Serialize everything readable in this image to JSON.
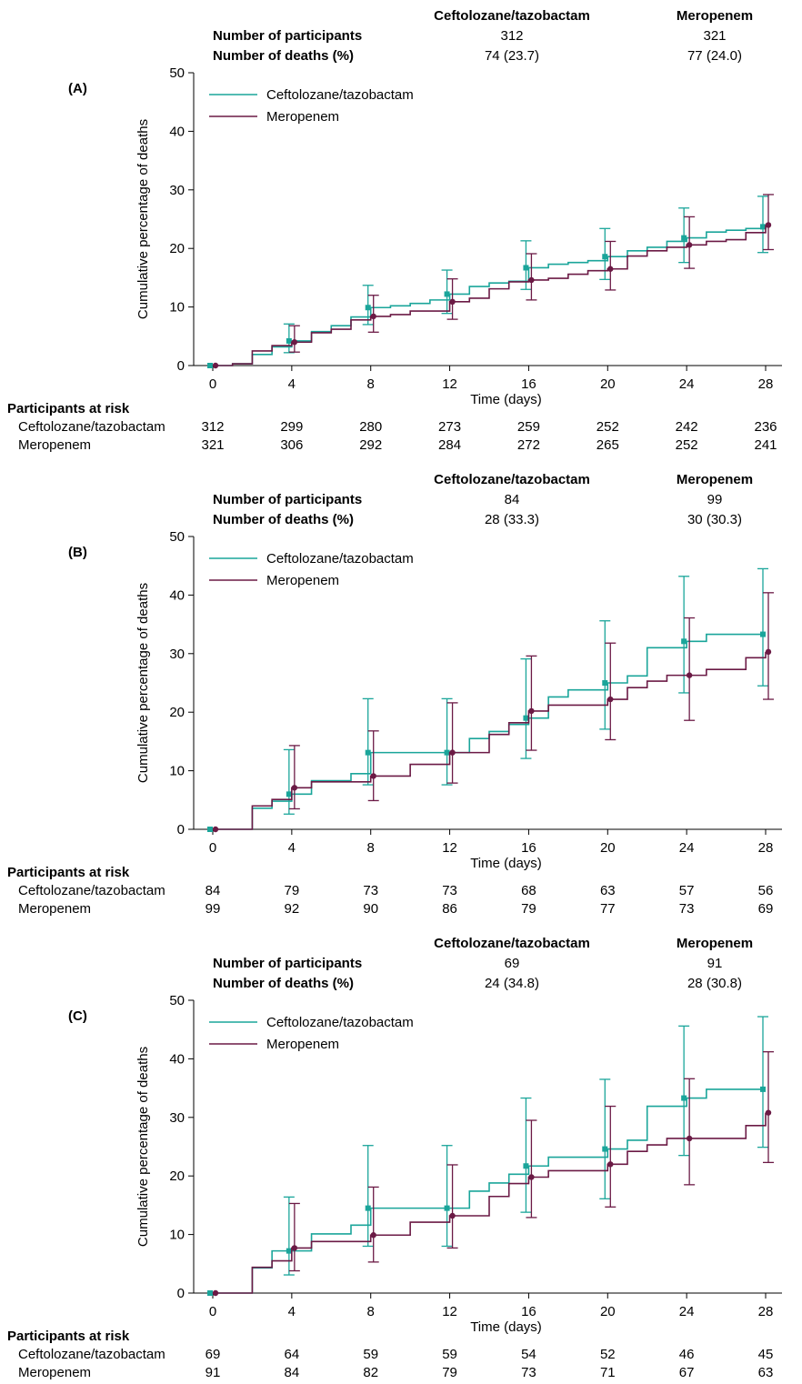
{
  "colors": {
    "ceftolozane": "#1aa59a",
    "meropenem": "#6b1a45"
  },
  "chart_data": [
    {
      "type": "line",
      "panel_label": "(A)",
      "xlabel": "Time (days)",
      "ylabel": "Cumulative percentage of deaths",
      "xlim": [
        0,
        28
      ],
      "ylim": [
        0,
        50
      ],
      "xticks": [
        0,
        4,
        8,
        12,
        16,
        20,
        24,
        28
      ],
      "yticks": [
        0,
        10,
        20,
        30,
        40,
        50
      ],
      "legend_position": "top-left",
      "summary": {
        "col_headers": [
          "Ceftolozane/tazobactam",
          "Meropenem"
        ],
        "row_labels": [
          "Number of participants",
          "Number of deaths (%)"
        ],
        "values": [
          [
            "312",
            "321"
          ],
          [
            "74 (23.7)",
            "77 (24.0)"
          ]
        ]
      },
      "series": [
        {
          "name": "Ceftolozane/tazobactam",
          "step_x": [
            0,
            1,
            2,
            3,
            4,
            5,
            6,
            7,
            8,
            9,
            10,
            11,
            12,
            13,
            14,
            15,
            16,
            17,
            18,
            19,
            20,
            21,
            22,
            23,
            24,
            25,
            26,
            27,
            28
          ],
          "step_y": [
            0,
            0.3,
            1.9,
            3.2,
            4.2,
            5.8,
            6.8,
            8.3,
            9.9,
            10.2,
            10.6,
            11.2,
            12.2,
            13.5,
            14.1,
            14.4,
            16.7,
            17.3,
            17.6,
            17.9,
            18.6,
            19.6,
            20.2,
            21.2,
            21.8,
            22.8,
            23.1,
            23.4,
            23.7
          ],
          "points_x": [
            0,
            4,
            8,
            12,
            16,
            20,
            24,
            28
          ],
          "points_y": [
            0,
            4.2,
            9.9,
            12.2,
            16.7,
            18.6,
            21.8,
            23.7
          ],
          "ci_low": [
            0,
            2.2,
            7.0,
            8.9,
            13.0,
            14.7,
            17.6,
            19.3
          ],
          "ci_high": [
            0,
            7.1,
            13.7,
            16.3,
            21.3,
            23.4,
            26.9,
            28.9
          ]
        },
        {
          "name": "Meropenem",
          "step_x": [
            0,
            1,
            2,
            3,
            4,
            5,
            6,
            7,
            8,
            9,
            10,
            11,
            12,
            13,
            14,
            15,
            16,
            17,
            18,
            19,
            20,
            21,
            22,
            23,
            24,
            25,
            26,
            27,
            28
          ],
          "step_y": [
            0,
            0.3,
            2.5,
            3.4,
            4.0,
            5.6,
            6.2,
            7.8,
            8.4,
            8.7,
            9.3,
            9.3,
            10.9,
            11.5,
            13.1,
            14.3,
            14.6,
            14.9,
            15.6,
            16.2,
            16.5,
            18.7,
            19.6,
            20.2,
            20.6,
            21.2,
            21.5,
            22.7,
            24.0
          ],
          "points_x": [
            0,
            4,
            8,
            12,
            16,
            20,
            24,
            28
          ],
          "points_y": [
            0,
            4.0,
            8.4,
            10.9,
            14.6,
            16.5,
            20.6,
            24.0
          ],
          "ci_low": [
            0,
            2.3,
            5.7,
            7.9,
            11.2,
            12.9,
            16.6,
            19.8
          ],
          "ci_high": [
            0,
            6.8,
            12.0,
            14.8,
            19.1,
            21.2,
            25.4,
            29.2
          ]
        }
      ],
      "at_risk": {
        "title": "Participants at risk",
        "rows": [
          {
            "label": "Ceftolozane/tazobactam",
            "values": [
              312,
              299,
              280,
              273,
              259,
              252,
              242,
              236
            ]
          },
          {
            "label": "Meropenem",
            "values": [
              321,
              306,
              292,
              284,
              272,
              265,
              252,
              241
            ]
          }
        ]
      }
    },
    {
      "type": "line",
      "panel_label": "(B)",
      "xlabel": "Time (days)",
      "ylabel": "Cumulative percentage of deaths",
      "xlim": [
        0,
        28
      ],
      "ylim": [
        0,
        50
      ],
      "xticks": [
        0,
        4,
        8,
        12,
        16,
        20,
        24,
        28
      ],
      "yticks": [
        0,
        10,
        20,
        30,
        40,
        50
      ],
      "legend_position": "top-left",
      "summary": {
        "col_headers": [
          "Ceftolozane/tazobactam",
          "Meropenem"
        ],
        "row_labels": [
          "Number of participants",
          "Number of deaths (%)"
        ],
        "values": [
          [
            "84",
            "99"
          ],
          [
            "28 (33.3)",
            "30 (30.3)"
          ]
        ]
      },
      "series": [
        {
          "name": "Ceftolozane/tazobactam",
          "step_x": [
            0,
            2,
            3,
            4,
            5,
            7,
            8,
            12,
            13,
            14,
            15,
            16,
            17,
            18,
            20,
            21,
            22,
            24,
            25,
            28
          ],
          "step_y": [
            0,
            3.6,
            4.8,
            6.0,
            8.3,
            9.5,
            13.1,
            13.1,
            15.5,
            16.7,
            17.9,
            19.0,
            22.6,
            23.8,
            25.0,
            26.2,
            31.0,
            32.1,
            33.3,
            33.3
          ],
          "points_x": [
            0,
            4,
            8,
            12,
            16,
            20,
            24,
            28
          ],
          "points_y": [
            0,
            6.0,
            13.1,
            13.1,
            19.0,
            25.0,
            32.1,
            33.3
          ],
          "ci_low": [
            0,
            2.6,
            7.6,
            7.6,
            12.1,
            17.1,
            23.3,
            24.5
          ],
          "ci_high": [
            0,
            13.6,
            22.3,
            22.3,
            29.1,
            35.6,
            43.2,
            44.5
          ]
        },
        {
          "name": "Meropenem",
          "step_x": [
            0,
            2,
            3,
            4,
            5,
            7,
            8,
            10,
            12,
            14,
            15,
            16,
            17,
            19,
            20,
            21,
            22,
            23,
            24,
            25,
            27,
            28
          ],
          "step_y": [
            0,
            4.0,
            5.1,
            7.1,
            8.1,
            8.1,
            9.1,
            11.1,
            13.1,
            16.2,
            18.2,
            20.2,
            21.2,
            21.2,
            22.2,
            24.2,
            25.3,
            26.3,
            26.3,
            27.3,
            29.3,
            30.3
          ],
          "points_x": [
            0,
            4,
            8,
            12,
            16,
            20,
            24,
            28
          ],
          "points_y": [
            0,
            7.1,
            9.1,
            13.1,
            20.2,
            22.2,
            26.3,
            30.3
          ],
          "ci_low": [
            0,
            3.5,
            4.9,
            7.9,
            13.5,
            15.3,
            18.6,
            22.2
          ],
          "ci_high": [
            0,
            14.3,
            16.8,
            21.6,
            29.6,
            31.8,
            36.1,
            40.4
          ]
        }
      ],
      "at_risk": {
        "title": "Participants at risk",
        "rows": [
          {
            "label": "Ceftolozane/tazobactam",
            "values": [
              84,
              79,
              73,
              73,
              68,
              63,
              57,
              56
            ]
          },
          {
            "label": "Meropenem",
            "values": [
              99,
              92,
              90,
              86,
              79,
              77,
              73,
              69
            ]
          }
        ]
      }
    },
    {
      "type": "line",
      "panel_label": "(C)",
      "xlabel": "Time (days)",
      "ylabel": "Cumulative percentage of deaths",
      "xlim": [
        0,
        28
      ],
      "ylim": [
        0,
        50
      ],
      "xticks": [
        0,
        4,
        8,
        12,
        16,
        20,
        24,
        28
      ],
      "yticks": [
        0,
        10,
        20,
        30,
        40,
        50
      ],
      "legend_position": "top-left",
      "summary": {
        "col_headers": [
          "Ceftolozane/tazobactam",
          "Meropenem"
        ],
        "row_labels": [
          "Number of participants",
          "Number of deaths (%)"
        ],
        "values": [
          [
            "69",
            "91"
          ],
          [
            "24 (34.8)",
            "28 (30.8)"
          ]
        ]
      },
      "series": [
        {
          "name": "Ceftolozane/tazobactam",
          "step_x": [
            0,
            2,
            3,
            4,
            5,
            7,
            8,
            12,
            13,
            14,
            15,
            16,
            17,
            18,
            20,
            21,
            22,
            24,
            25,
            28
          ],
          "step_y": [
            0,
            4.3,
            7.2,
            7.2,
            10.1,
            11.6,
            14.5,
            14.5,
            17.4,
            18.8,
            20.3,
            21.7,
            23.2,
            23.2,
            24.6,
            26.1,
            31.9,
            33.3,
            34.8,
            34.8
          ],
          "points_x": [
            0,
            4,
            8,
            12,
            16,
            20,
            24,
            28
          ],
          "points_y": [
            0,
            7.2,
            14.5,
            14.5,
            21.7,
            24.6,
            33.3,
            34.8
          ],
          "ci_low": [
            0,
            3.1,
            8.0,
            8.0,
            13.8,
            16.1,
            23.5,
            24.9
          ],
          "ci_high": [
            0,
            16.4,
            25.2,
            25.2,
            33.3,
            36.5,
            45.6,
            47.2
          ]
        },
        {
          "name": "Meropenem",
          "step_x": [
            0,
            2,
            3,
            4,
            5,
            7,
            8,
            10,
            12,
            14,
            15,
            16,
            17,
            19,
            20,
            21,
            22,
            23,
            24,
            25,
            27,
            28
          ],
          "step_y": [
            0,
            4.4,
            5.5,
            7.7,
            8.8,
            8.8,
            9.9,
            12.1,
            13.2,
            16.5,
            18.7,
            19.8,
            20.9,
            20.9,
            22.0,
            24.2,
            25.3,
            26.4,
            26.4,
            26.4,
            28.6,
            30.8
          ],
          "points_x": [
            0,
            4,
            8,
            12,
            16,
            20,
            24,
            28
          ],
          "points_y": [
            0,
            7.7,
            9.9,
            13.2,
            19.8,
            22.0,
            26.4,
            30.8
          ],
          "ci_low": [
            0,
            3.8,
            5.3,
            7.7,
            12.9,
            14.7,
            18.5,
            22.3
          ],
          "ci_high": [
            0,
            15.3,
            18.1,
            21.9,
            29.5,
            31.9,
            36.6,
            41.2
          ]
        }
      ],
      "at_risk": {
        "title": "Participants at risk",
        "rows": [
          {
            "label": "Ceftolozane/tazobactam",
            "values": [
              69,
              64,
              59,
              59,
              54,
              52,
              46,
              45
            ]
          },
          {
            "label": "Meropenem",
            "values": [
              91,
              84,
              82,
              79,
              73,
              71,
              67,
              63
            ]
          }
        ]
      }
    }
  ]
}
